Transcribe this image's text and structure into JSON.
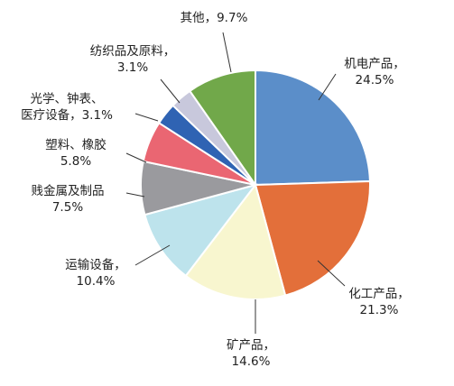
{
  "chart_data": {
    "type": "pie",
    "start_angle_deg": 0,
    "direction": "clockwise",
    "slices": [
      {
        "name": "机电产品",
        "value": 24.5,
        "label_line1": "机电产品，",
        "label_line2": "24.5%",
        "color": "#5b8ec9"
      },
      {
        "name": "化工产品",
        "value": 21.3,
        "label_line1": "化工产品，",
        "label_line2": "21.3%",
        "color": "#e36f3a"
      },
      {
        "name": "矿产品",
        "value": 14.6,
        "label_line1": "矿产品，",
        "label_line2": "14.6%",
        "color": "#f8f6cf"
      },
      {
        "name": "运输设备",
        "value": 10.4,
        "label_line1": "运输设备，",
        "label_line2": "10.4%",
        "color": "#bde3ec"
      },
      {
        "name": "贱金属及制品",
        "value": 7.5,
        "label_line1": "贱金属及制品",
        "label_line2": "7.5%",
        "color": "#9a9a9e"
      },
      {
        "name": "塑料、橡胶",
        "value": 5.8,
        "label_line1": "塑料、橡胶",
        "label_line2": "5.8%",
        "color": "#ea6672"
      },
      {
        "name": "光学、钟表、医疗设备",
        "value": 3.1,
        "label_line1": "光学、钟表、",
        "label_line2": "医疗设备，3.1%",
        "color": "#2f63b3"
      },
      {
        "name": "纺织品及原料",
        "value": 3.1,
        "label_line1": "纺织品及原料，",
        "label_line2": "3.1%",
        "color": "#c8c8dc"
      },
      {
        "name": "其他",
        "value": 9.7,
        "label_line1": "其他，9.7%",
        "label_line2": "",
        "color": "#71a84a"
      }
    ]
  }
}
